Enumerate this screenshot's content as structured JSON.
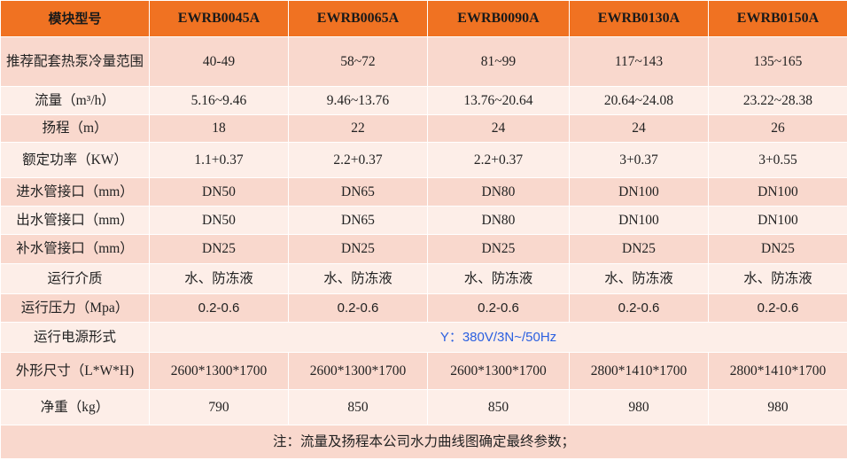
{
  "header": [
    "模块型号",
    "EWRB0045A",
    "EWRB0065A",
    "EWRB0090A",
    "EWRB0130A",
    "EWRB0150A"
  ],
  "rows": [
    {
      "label": "推荐配套热泵冷量范围",
      "values": [
        "40-49",
        "58~72",
        "81~99",
        "117~143",
        "135~165"
      ]
    },
    {
      "label": "流量（m³/h）",
      "values": [
        "5.16~9.46",
        "9.46~13.76",
        "13.76~20.64",
        "20.64~24.08",
        "23.22~28.38"
      ]
    },
    {
      "label": "扬程（m）",
      "values": [
        "18",
        "22",
        "24",
        "24",
        "26"
      ]
    },
    {
      "label": "额定功率（KW）",
      "values": [
        "1.1+0.37",
        "2.2+0.37",
        "2.2+0.37",
        "3+0.37",
        "3+0.55"
      ]
    },
    {
      "label": "进水管接口（mm）",
      "values": [
        "DN50",
        "DN65",
        "DN80",
        "DN100",
        "DN100"
      ]
    },
    {
      "label": "出水管接口（mm）",
      "values": [
        "DN50",
        "DN65",
        "DN80",
        "DN100",
        "DN100"
      ]
    },
    {
      "label": "补水管接口（mm）",
      "values": [
        "DN25",
        "DN25",
        "DN25",
        "DN25",
        "DN25"
      ]
    },
    {
      "label": "运行介质",
      "values": [
        "水、防冻液",
        "水、防冻液",
        "水、防冻液",
        "水、防冻液",
        "水、防冻液"
      ]
    },
    {
      "label": "运行压力（Mpa）",
      "values": [
        "0.2-0.6",
        "0.2-0.6",
        "0.2-0.6",
        "0.2-0.6",
        "0.2-0.6"
      ]
    }
  ],
  "power_supply": {
    "label": "运行电源形式",
    "value": "Y：380V/3N~/50Hz"
  },
  "rows2": [
    {
      "label": "外形尺寸（L*W*H)",
      "values": [
        "2600*1300*1700",
        "2600*1300*1700",
        "2600*1300*1700",
        "2800*1410*1700",
        "2800*1410*1700"
      ]
    },
    {
      "label": "净重（kg）",
      "values": [
        "790",
        "850",
        "850",
        "980",
        "980"
      ]
    }
  ],
  "note": "注：流量及扬程本公司水力曲线图确定最终参数；"
}
